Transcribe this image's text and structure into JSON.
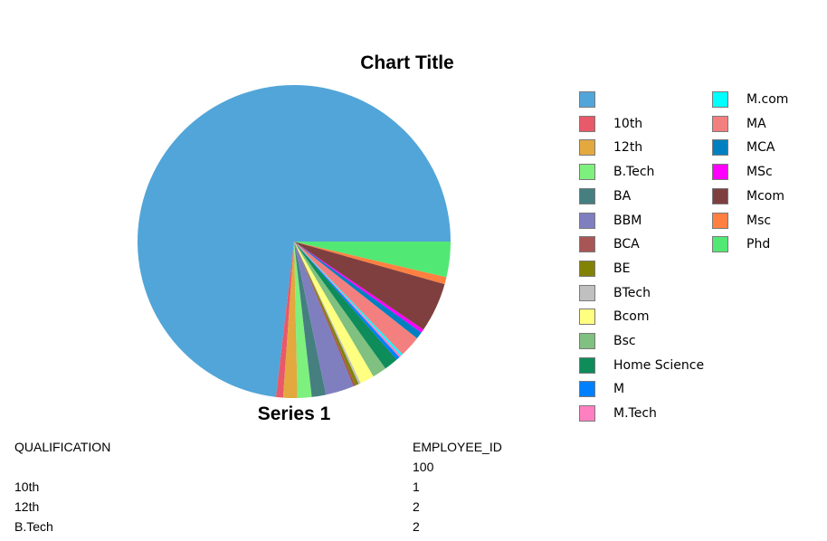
{
  "chart_data": {
    "type": "pie",
    "title": "Chart Title",
    "series_name": "Series 1",
    "legend_position": "right",
    "categories": [
      "",
      "10th",
      "12th",
      "B.Tech",
      "BA",
      "BBM",
      "BCA",
      "BE",
      "BTech",
      "Bcom",
      "Bsc",
      "Home Science",
      "M",
      "M.Tech",
      "M.com",
      "MA",
      "MCA",
      "MSc",
      "Mcom",
      "Msc",
      "Phd"
    ],
    "values": [
      100,
      1,
      2,
      2,
      2,
      4,
      0.3,
      0.5,
      0.3,
      2,
      2,
      2,
      0.5,
      0.3,
      0.3,
      3,
      1,
      0.5,
      7,
      1,
      5
    ],
    "colors": [
      "#52a5d8",
      "#e8596a",
      "#e3a83e",
      "#7ef07e",
      "#457f80",
      "#7f7fc0",
      "#a85555",
      "#828206",
      "#c0c0c0",
      "#ffff80",
      "#80c080",
      "#0e8c5a",
      "#0080ff",
      "#ff80c0",
      "#00ffff",
      "#f47f7f",
      "#0080c0",
      "#ff00ff",
      "#7f3f3f",
      "#ff8040",
      "#52e874"
    ]
  },
  "table": {
    "headers": [
      "QUALIFICATION",
      "EMPLOYEE_ID"
    ],
    "rows": [
      [
        "",
        "100"
      ],
      [
        "10th",
        "1"
      ],
      [
        "12th",
        "2"
      ],
      [
        "B.Tech",
        "2"
      ]
    ]
  }
}
